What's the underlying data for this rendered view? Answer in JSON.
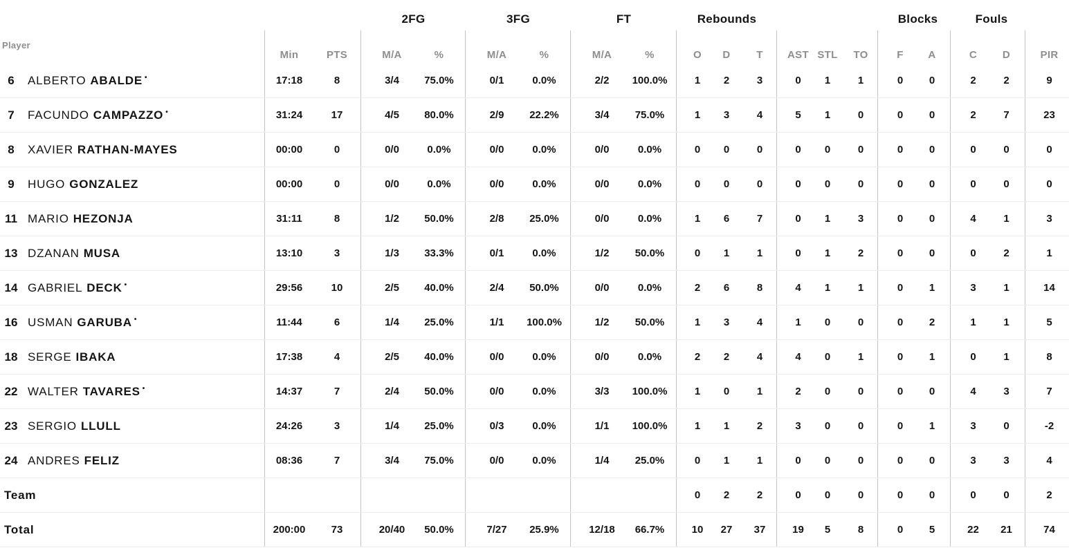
{
  "colors": {
    "text": "#141414",
    "muted": "#8d8d92",
    "divider_vertical": "#c4c4c4",
    "divider_horizontal": "#ececec",
    "background": "#ffffff"
  },
  "table": {
    "starter_marker": "•",
    "groups": {
      "fg2": "2FG",
      "fg3": "3FG",
      "ft": "FT",
      "rebounds": "Rebounds",
      "blocks": "Blocks",
      "fouls": "Fouls"
    },
    "headers": {
      "player": "Player",
      "min": "Min",
      "pts": "PTS",
      "ma": "M/A",
      "pct": "%",
      "reb_o": "O",
      "reb_d": "D",
      "reb_t": "T",
      "ast": "AST",
      "stl": "STL",
      "to": "TO",
      "blk_f": "F",
      "blk_a": "A",
      "foul_c": "C",
      "foul_d": "D",
      "pir": "PIR"
    },
    "rows": [
      {
        "num": "6",
        "first": "ALBERTO",
        "last": "ABALDE",
        "starter": true,
        "min": "17:18",
        "pts": "8",
        "fg2ma": "3/4",
        "fg2pct": "75.0%",
        "fg3ma": "0/1",
        "fg3pct": "0.0%",
        "ftma": "2/2",
        "ftpct": "100.0%",
        "o": "1",
        "d": "2",
        "t": "3",
        "ast": "0",
        "stl": "1",
        "to": "1",
        "bf": "0",
        "ba": "0",
        "fc": "2",
        "fd": "2",
        "pir": "9"
      },
      {
        "num": "7",
        "first": "FACUNDO",
        "last": "CAMPAZZO",
        "starter": true,
        "min": "31:24",
        "pts": "17",
        "fg2ma": "4/5",
        "fg2pct": "80.0%",
        "fg3ma": "2/9",
        "fg3pct": "22.2%",
        "ftma": "3/4",
        "ftpct": "75.0%",
        "o": "1",
        "d": "3",
        "t": "4",
        "ast": "5",
        "stl": "1",
        "to": "0",
        "bf": "0",
        "ba": "0",
        "fc": "2",
        "fd": "7",
        "pir": "23"
      },
      {
        "num": "8",
        "first": "XAVIER",
        "last": "RATHAN-MAYES",
        "starter": false,
        "min": "00:00",
        "pts": "0",
        "fg2ma": "0/0",
        "fg2pct": "0.0%",
        "fg3ma": "0/0",
        "fg3pct": "0.0%",
        "ftma": "0/0",
        "ftpct": "0.0%",
        "o": "0",
        "d": "0",
        "t": "0",
        "ast": "0",
        "stl": "0",
        "to": "0",
        "bf": "0",
        "ba": "0",
        "fc": "0",
        "fd": "0",
        "pir": "0"
      },
      {
        "num": "9",
        "first": "HUGO",
        "last": "GONZALEZ",
        "starter": false,
        "min": "00:00",
        "pts": "0",
        "fg2ma": "0/0",
        "fg2pct": "0.0%",
        "fg3ma": "0/0",
        "fg3pct": "0.0%",
        "ftma": "0/0",
        "ftpct": "0.0%",
        "o": "0",
        "d": "0",
        "t": "0",
        "ast": "0",
        "stl": "0",
        "to": "0",
        "bf": "0",
        "ba": "0",
        "fc": "0",
        "fd": "0",
        "pir": "0"
      },
      {
        "num": "11",
        "first": "MARIO",
        "last": "HEZONJA",
        "starter": false,
        "min": "31:11",
        "pts": "8",
        "fg2ma": "1/2",
        "fg2pct": "50.0%",
        "fg3ma": "2/8",
        "fg3pct": "25.0%",
        "ftma": "0/0",
        "ftpct": "0.0%",
        "o": "1",
        "d": "6",
        "t": "7",
        "ast": "0",
        "stl": "1",
        "to": "3",
        "bf": "0",
        "ba": "0",
        "fc": "4",
        "fd": "1",
        "pir": "3"
      },
      {
        "num": "13",
        "first": "DZANAN",
        "last": "MUSA",
        "starter": false,
        "min": "13:10",
        "pts": "3",
        "fg2ma": "1/3",
        "fg2pct": "33.3%",
        "fg3ma": "0/1",
        "fg3pct": "0.0%",
        "ftma": "1/2",
        "ftpct": "50.0%",
        "o": "0",
        "d": "1",
        "t": "1",
        "ast": "0",
        "stl": "1",
        "to": "2",
        "bf": "0",
        "ba": "0",
        "fc": "0",
        "fd": "2",
        "pir": "1"
      },
      {
        "num": "14",
        "first": "GABRIEL",
        "last": "DECK",
        "starter": true,
        "min": "29:56",
        "pts": "10",
        "fg2ma": "2/5",
        "fg2pct": "40.0%",
        "fg3ma": "2/4",
        "fg3pct": "50.0%",
        "ftma": "0/0",
        "ftpct": "0.0%",
        "o": "2",
        "d": "6",
        "t": "8",
        "ast": "4",
        "stl": "1",
        "to": "1",
        "bf": "0",
        "ba": "1",
        "fc": "3",
        "fd": "1",
        "pir": "14"
      },
      {
        "num": "16",
        "first": "USMAN",
        "last": "GARUBA",
        "starter": true,
        "min": "11:44",
        "pts": "6",
        "fg2ma": "1/4",
        "fg2pct": "25.0%",
        "fg3ma": "1/1",
        "fg3pct": "100.0%",
        "ftma": "1/2",
        "ftpct": "50.0%",
        "o": "1",
        "d": "3",
        "t": "4",
        "ast": "1",
        "stl": "0",
        "to": "0",
        "bf": "0",
        "ba": "2",
        "fc": "1",
        "fd": "1",
        "pir": "5"
      },
      {
        "num": "18",
        "first": "SERGE",
        "last": "IBAKA",
        "starter": false,
        "min": "17:38",
        "pts": "4",
        "fg2ma": "2/5",
        "fg2pct": "40.0%",
        "fg3ma": "0/0",
        "fg3pct": "0.0%",
        "ftma": "0/0",
        "ftpct": "0.0%",
        "o": "2",
        "d": "2",
        "t": "4",
        "ast": "4",
        "stl": "0",
        "to": "1",
        "bf": "0",
        "ba": "1",
        "fc": "0",
        "fd": "1",
        "pir": "8"
      },
      {
        "num": "22",
        "first": "WALTER",
        "last": "TAVARES",
        "starter": true,
        "min": "14:37",
        "pts": "7",
        "fg2ma": "2/4",
        "fg2pct": "50.0%",
        "fg3ma": "0/0",
        "fg3pct": "0.0%",
        "ftma": "3/3",
        "ftpct": "100.0%",
        "o": "1",
        "d": "0",
        "t": "1",
        "ast": "2",
        "stl": "0",
        "to": "0",
        "bf": "0",
        "ba": "0",
        "fc": "4",
        "fd": "3",
        "pir": "7"
      },
      {
        "num": "23",
        "first": "SERGIO",
        "last": "LLULL",
        "starter": false,
        "min": "24:26",
        "pts": "3",
        "fg2ma": "1/4",
        "fg2pct": "25.0%",
        "fg3ma": "0/3",
        "fg3pct": "0.0%",
        "ftma": "1/1",
        "ftpct": "100.0%",
        "o": "1",
        "d": "1",
        "t": "2",
        "ast": "3",
        "stl": "0",
        "to": "0",
        "bf": "0",
        "ba": "1",
        "fc": "3",
        "fd": "0",
        "pir": "-2"
      },
      {
        "num": "24",
        "first": "ANDRES",
        "last": "FELIZ",
        "starter": false,
        "min": "08:36",
        "pts": "7",
        "fg2ma": "3/4",
        "fg2pct": "75.0%",
        "fg3ma": "0/0",
        "fg3pct": "0.0%",
        "ftma": "1/4",
        "ftpct": "25.0%",
        "o": "0",
        "d": "1",
        "t": "1",
        "ast": "0",
        "stl": "0",
        "to": "0",
        "bf": "0",
        "ba": "0",
        "fc": "3",
        "fd": "3",
        "pir": "4"
      },
      {
        "label": "Team",
        "min": "",
        "pts": "",
        "fg2ma": "",
        "fg2pct": "",
        "fg3ma": "",
        "fg3pct": "",
        "ftma": "",
        "ftpct": "",
        "o": "0",
        "d": "2",
        "t": "2",
        "ast": "0",
        "stl": "0",
        "to": "0",
        "bf": "0",
        "ba": "0",
        "fc": "0",
        "fd": "0",
        "pir": "2"
      },
      {
        "label": "Total",
        "min": "200:00",
        "pts": "73",
        "fg2ma": "20/40",
        "fg2pct": "50.0%",
        "fg3ma": "7/27",
        "fg3pct": "25.9%",
        "ftma": "12/18",
        "ftpct": "66.7%",
        "o": "10",
        "d": "27",
        "t": "37",
        "ast": "19",
        "stl": "5",
        "to": "8",
        "bf": "0",
        "ba": "5",
        "fc": "22",
        "fd": "21",
        "pir": "74"
      }
    ]
  }
}
